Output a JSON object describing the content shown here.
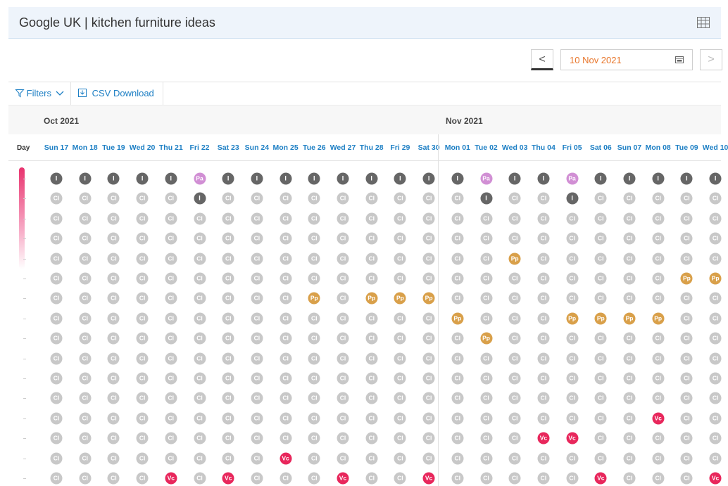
{
  "header": {
    "title": "Google UK | kitchen furniture ideas",
    "table_icon": "table-icon"
  },
  "date_nav": {
    "prev": "<",
    "next": ">",
    "date": "10 Nov 2021",
    "calendar_icon": "calendar-icon"
  },
  "toolbar": {
    "filters_label": "Filters",
    "csv_label": "CSV Download"
  },
  "months": [
    "Oct 2021",
    "Nov 2021"
  ],
  "day_label": "Day",
  "dates": [
    "Sun 17",
    "Mon 18",
    "Tue 19",
    "Wed 20",
    "Thu 21",
    "Fri 22",
    "Sat 23",
    "Sun 24",
    "Mon 25",
    "Tue 26",
    "Wed 27",
    "Thu 28",
    "Fri 29",
    "Sat 30",
    "Mon 01",
    "Tue 02",
    "Wed 03",
    "Thu 04",
    "Fri 05",
    "Sat 06",
    "Sun 07",
    "Mon 08",
    "Tue 09",
    "Wed 10"
  ],
  "colors": {
    "I": "#666666",
    "CI": "#c8c8c8",
    "Pa": "#d18fd4",
    "Pp": "#d9a04a",
    "Vc": "#e8275c",
    "link": "#1d7fc4",
    "date_value": "#e8762b"
  },
  "grid": [
    [
      "I",
      "I",
      "I",
      "I",
      "I",
      "Pa",
      "I",
      "I",
      "I",
      "I",
      "I",
      "I",
      "I",
      "I",
      "I",
      "Pa",
      "I",
      "I",
      "Pa",
      "I",
      "I",
      "I",
      "I",
      "I"
    ],
    [
      "CI",
      "CI",
      "CI",
      "CI",
      "CI",
      "I",
      "CI",
      "CI",
      "CI",
      "CI",
      "CI",
      "CI",
      "CI",
      "CI",
      "CI",
      "I",
      "CI",
      "CI",
      "I",
      "CI",
      "CI",
      "CI",
      "CI",
      "CI"
    ],
    [
      "CI",
      "CI",
      "CI",
      "CI",
      "CI",
      "CI",
      "CI",
      "CI",
      "CI",
      "CI",
      "CI",
      "CI",
      "CI",
      "CI",
      "CI",
      "CI",
      "CI",
      "CI",
      "CI",
      "CI",
      "CI",
      "CI",
      "CI",
      "CI"
    ],
    [
      "CI",
      "CI",
      "CI",
      "CI",
      "CI",
      "CI",
      "CI",
      "CI",
      "CI",
      "CI",
      "CI",
      "CI",
      "CI",
      "CI",
      "CI",
      "CI",
      "CI",
      "CI",
      "CI",
      "CI",
      "CI",
      "CI",
      "CI",
      "CI"
    ],
    [
      "CI",
      "CI",
      "CI",
      "CI",
      "CI",
      "CI",
      "CI",
      "CI",
      "CI",
      "CI",
      "CI",
      "CI",
      "CI",
      "CI",
      "CI",
      "CI",
      "Pp",
      "CI",
      "CI",
      "CI",
      "CI",
      "CI",
      "CI",
      "CI"
    ],
    [
      "CI",
      "CI",
      "CI",
      "CI",
      "CI",
      "CI",
      "CI",
      "CI",
      "CI",
      "CI",
      "CI",
      "CI",
      "CI",
      "CI",
      "CI",
      "CI",
      "CI",
      "CI",
      "CI",
      "CI",
      "CI",
      "CI",
      "Pp",
      "Pp"
    ],
    [
      "CI",
      "CI",
      "CI",
      "CI",
      "CI",
      "CI",
      "CI",
      "CI",
      "CI",
      "Pp",
      "CI",
      "Pp",
      "Pp",
      "Pp",
      "CI",
      "CI",
      "CI",
      "CI",
      "CI",
      "CI",
      "CI",
      "CI",
      "CI",
      "CI"
    ],
    [
      "CI",
      "CI",
      "CI",
      "CI",
      "CI",
      "CI",
      "CI",
      "CI",
      "CI",
      "CI",
      "CI",
      "CI",
      "CI",
      "CI",
      "Pp",
      "CI",
      "CI",
      "CI",
      "Pp",
      "Pp",
      "Pp",
      "Pp",
      "CI",
      "CI"
    ],
    [
      "CI",
      "CI",
      "CI",
      "CI",
      "CI",
      "CI",
      "CI",
      "CI",
      "CI",
      "CI",
      "CI",
      "CI",
      "CI",
      "CI",
      "CI",
      "Pp",
      "CI",
      "CI",
      "CI",
      "CI",
      "CI",
      "CI",
      "CI",
      "CI"
    ],
    [
      "CI",
      "CI",
      "CI",
      "CI",
      "CI",
      "CI",
      "CI",
      "CI",
      "CI",
      "CI",
      "CI",
      "CI",
      "CI",
      "CI",
      "CI",
      "CI",
      "CI",
      "CI",
      "CI",
      "CI",
      "CI",
      "CI",
      "CI",
      "CI"
    ],
    [
      "CI",
      "CI",
      "CI",
      "CI",
      "CI",
      "CI",
      "CI",
      "CI",
      "CI",
      "CI",
      "CI",
      "CI",
      "CI",
      "CI",
      "CI",
      "CI",
      "CI",
      "CI",
      "CI",
      "CI",
      "CI",
      "CI",
      "CI",
      "CI"
    ],
    [
      "CI",
      "CI",
      "CI",
      "CI",
      "CI",
      "CI",
      "CI",
      "CI",
      "CI",
      "CI",
      "CI",
      "CI",
      "CI",
      "CI",
      "CI",
      "CI",
      "CI",
      "CI",
      "CI",
      "CI",
      "CI",
      "CI",
      "CI",
      "CI"
    ],
    [
      "CI",
      "CI",
      "CI",
      "CI",
      "CI",
      "CI",
      "CI",
      "CI",
      "CI",
      "CI",
      "CI",
      "CI",
      "CI",
      "CI",
      "CI",
      "CI",
      "CI",
      "CI",
      "CI",
      "CI",
      "CI",
      "Vc",
      "CI",
      "CI"
    ],
    [
      "CI",
      "CI",
      "CI",
      "CI",
      "CI",
      "CI",
      "CI",
      "CI",
      "CI",
      "CI",
      "CI",
      "CI",
      "CI",
      "CI",
      "CI",
      "CI",
      "CI",
      "Vc",
      "Vc",
      "CI",
      "CI",
      "CI",
      "CI",
      "CI"
    ],
    [
      "CI",
      "CI",
      "CI",
      "CI",
      "CI",
      "CI",
      "CI",
      "CI",
      "Vc",
      "CI",
      "CI",
      "CI",
      "CI",
      "CI",
      "CI",
      "CI",
      "CI",
      "CI",
      "CI",
      "CI",
      "CI",
      "CI",
      "CI",
      "CI"
    ],
    [
      "CI",
      "CI",
      "CI",
      "CI",
      "Vc",
      "CI",
      "Vc",
      "CI",
      "CI",
      "CI",
      "Vc",
      "CI",
      "CI",
      "Vc",
      "CI",
      "CI",
      "CI",
      "CI",
      "CI",
      "Vc",
      "CI",
      "CI",
      "CI",
      "Vc"
    ]
  ]
}
